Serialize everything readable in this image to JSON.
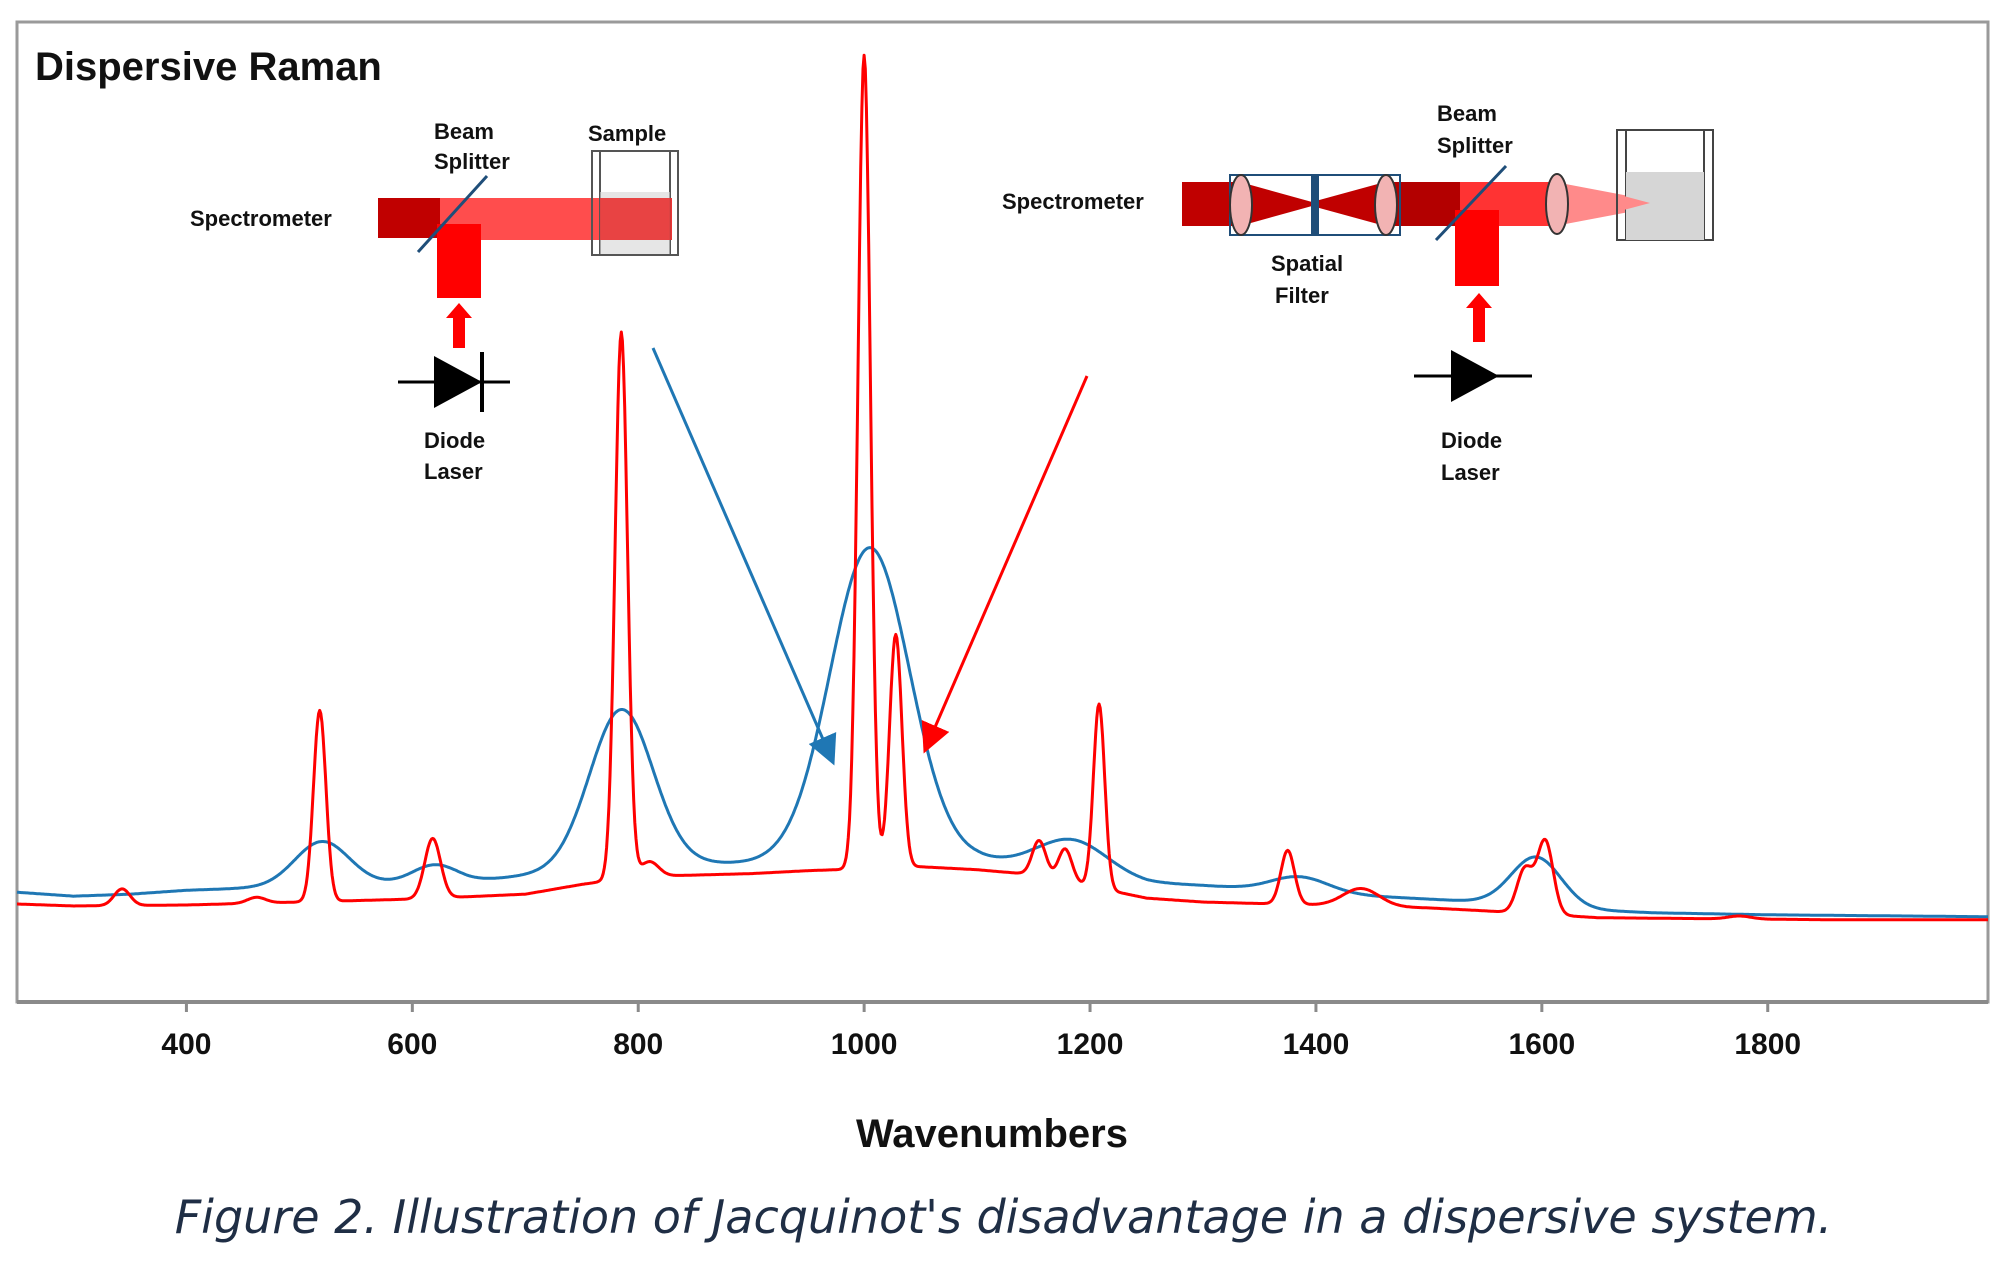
{
  "chart_data": {
    "type": "line",
    "title": "Dispersive Raman",
    "xlabel": "Wavenumbers",
    "ylabel": "",
    "xlim": [
      250,
      1995
    ],
    "ylim": [
      0,
      100
    ],
    "xticks": [
      "400",
      "600",
      "800",
      "1000",
      "1200",
      "1400",
      "1600",
      "1800"
    ],
    "grid": false,
    "series": [
      {
        "name": "blue",
        "color": "#1f77b4",
        "baseline": [
          [
            250,
            11.2
          ],
          [
            300,
            10.8
          ],
          [
            350,
            11.0
          ],
          [
            400,
            11.4
          ],
          [
            450,
            11.6
          ],
          [
            550,
            12.0
          ],
          [
            650,
            12.3
          ],
          [
            700,
            12.9
          ],
          [
            740,
            13.4
          ],
          [
            800,
            14.0
          ],
          [
            900,
            14.2
          ],
          [
            950,
            14.4
          ],
          [
            1050,
            14.7
          ],
          [
            1100,
            14.6
          ],
          [
            1150,
            14.0
          ],
          [
            1250,
            12.2
          ],
          [
            1300,
            11.9
          ],
          [
            1350,
            11.5
          ],
          [
            1400,
            11.2
          ],
          [
            1450,
            10.8
          ],
          [
            1500,
            10.5
          ],
          [
            1550,
            10.2
          ],
          [
            1640,
            9.4
          ],
          [
            1700,
            9.1
          ],
          [
            1800,
            8.9
          ],
          [
            1900,
            8.8
          ],
          [
            1995,
            8.7
          ]
        ],
        "peaks": [
          {
            "center": 520,
            "height": 4.5,
            "width": 24
          },
          {
            "center": 620,
            "height": 1.8,
            "width": 20
          },
          {
            "center": 785,
            "height": 16.0,
            "width": 28
          },
          {
            "center": 1005,
            "height": 31.8,
            "width": 35
          },
          {
            "center": 1185,
            "height": 3.2,
            "width": 30
          },
          {
            "center": 1385,
            "height": 1.5,
            "width": 25
          },
          {
            "center": 1595,
            "height": 5.0,
            "width": 22
          }
        ]
      },
      {
        "name": "red",
        "color": "#ff0000",
        "baseline": [
          [
            250,
            10.0
          ],
          [
            300,
            9.8
          ],
          [
            400,
            9.9
          ],
          [
            500,
            10.2
          ],
          [
            600,
            10.5
          ],
          [
            700,
            11.0
          ],
          [
            750,
            12.0
          ],
          [
            800,
            12.8
          ],
          [
            900,
            13.1
          ],
          [
            950,
            13.4
          ],
          [
            1050,
            13.8
          ],
          [
            1100,
            13.5
          ],
          [
            1150,
            13.0
          ],
          [
            1250,
            10.6
          ],
          [
            1300,
            10.2
          ],
          [
            1400,
            9.9
          ],
          [
            1500,
            9.6
          ],
          [
            1550,
            9.3
          ],
          [
            1650,
            8.6
          ],
          [
            1750,
            8.5
          ],
          [
            1850,
            8.4
          ],
          [
            1995,
            8.4
          ]
        ],
        "peaks": [
          {
            "center": 343,
            "height": 1.7,
            "width": 7
          },
          {
            "center": 462,
            "height": 0.6,
            "width": 8
          },
          {
            "center": 518,
            "height": 19.5,
            "width": 5.5
          },
          {
            "center": 618,
            "height": 6.1,
            "width": 7
          },
          {
            "center": 785,
            "height": 55.8,
            "width": 5.5
          },
          {
            "center": 810,
            "height": 1.5,
            "width": 8
          },
          {
            "center": 1000,
            "height": 83.0,
            "width": 5.5
          },
          {
            "center": 1028,
            "height": 23.8,
            "width": 5.5
          },
          {
            "center": 1155,
            "height": 3.6,
            "width": 6
          },
          {
            "center": 1178,
            "height": 3.3,
            "width": 6
          },
          {
            "center": 1208,
            "height": 18.8,
            "width": 5
          },
          {
            "center": 1375,
            "height": 5.5,
            "width": 6
          },
          {
            "center": 1440,
            "height": 1.8,
            "width": 16
          },
          {
            "center": 1585,
            "height": 4.5,
            "width": 7
          },
          {
            "center": 1603,
            "height": 7.5,
            "width": 7
          },
          {
            "center": 1775,
            "height": 0.3,
            "width": 10
          }
        ]
      }
    ]
  },
  "diagram_left": {
    "spectrometer": "Spectrometer",
    "beam": "Beam",
    "splitter": "Splitter",
    "sample": "Sample",
    "diode": "Diode",
    "laser": "Laser"
  },
  "diagram_right": {
    "spectrometer": "Spectrometer",
    "beam": "Beam",
    "splitter": "Splitter",
    "spatial": "Spatial",
    "filter": "Filter",
    "diode": "Diode",
    "laser": "Laser"
  },
  "caption": "Figure 2.  Illustration of Jacquinot's disadvantage in a dispersive system."
}
